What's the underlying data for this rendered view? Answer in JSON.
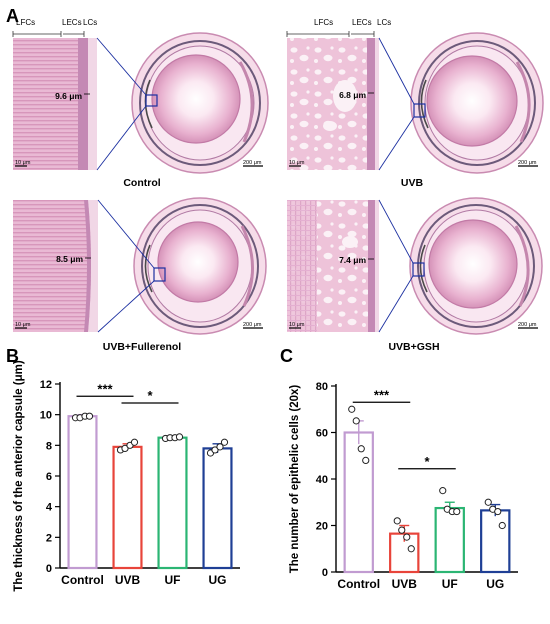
{
  "figure": {
    "panel_A": {
      "letter": "A",
      "scale_small": "10 μm",
      "scale_large": "200 μm",
      "tiles": [
        {
          "group": "Control",
          "thickness": "9.6 μm",
          "layers": [
            "LFCs",
            "LECs",
            "LCs"
          ]
        },
        {
          "group": "UVB",
          "thickness": "6.8 μm",
          "layers": [
            "LFCs",
            "LECs",
            "LCs"
          ]
        },
        {
          "group": "UVB+Fullerenol",
          "thickness": "8.5 μm",
          "layers": []
        },
        {
          "group": "UVB+GSH",
          "thickness": "7.4 μm",
          "layers": []
        }
      ]
    },
    "panel_B": {
      "letter": "B"
    },
    "panel_C": {
      "letter": "C"
    }
  },
  "chart_data": [
    {
      "type": "bar",
      "title": "",
      "xlabel": "",
      "ylabel": "The thickness of the anterior capsule (μm)",
      "ylim": [
        0,
        12
      ],
      "yticks": [
        0,
        2,
        4,
        6,
        8,
        10,
        12
      ],
      "categories": [
        "Control",
        "UVB",
        "UF",
        "UG"
      ],
      "values": [
        9.9,
        7.9,
        8.5,
        7.8
      ],
      "errors": [
        0.1,
        0.2,
        0.1,
        0.3
      ],
      "points": [
        [
          9.8,
          9.8,
          9.9,
          9.9
        ],
        [
          7.7,
          7.8,
          8.0,
          8.2
        ],
        [
          8.45,
          8.5,
          8.5,
          8.55
        ],
        [
          7.5,
          7.7,
          7.9,
          8.2
        ]
      ],
      "bar_colors": [
        "#c19bd1",
        "#e8443a",
        "#2bb573",
        "#1f3f95"
      ],
      "significance": [
        {
          "from": 0,
          "to": 1,
          "label": "***"
        },
        {
          "from": 1,
          "to": 2,
          "label": "*"
        }
      ],
      "grid": false,
      "legend": "none"
    },
    {
      "type": "bar",
      "title": "",
      "xlabel": "",
      "ylabel": "The number of epithelic cells (20x)",
      "ylim": [
        0,
        80
      ],
      "yticks": [
        0,
        20,
        40,
        60,
        80
      ],
      "categories": [
        "Control",
        "UVB",
        "UF",
        "UG"
      ],
      "values": [
        60,
        16.5,
        27.5,
        26.5
      ],
      "errors": [
        5,
        3.5,
        2.5,
        2.5
      ],
      "points": [
        [
          70,
          65,
          53,
          48
        ],
        [
          22,
          18,
          15,
          10
        ],
        [
          35,
          27,
          26,
          26
        ],
        [
          30,
          27,
          26,
          20
        ]
      ],
      "bar_colors": [
        "#c19bd1",
        "#e8443a",
        "#2bb573",
        "#1f3f95"
      ],
      "significance": [
        {
          "from": 0,
          "to": 1,
          "label": "***"
        },
        {
          "from": 1,
          "to": 2,
          "label": "*"
        }
      ],
      "grid": false,
      "legend": "none"
    }
  ]
}
